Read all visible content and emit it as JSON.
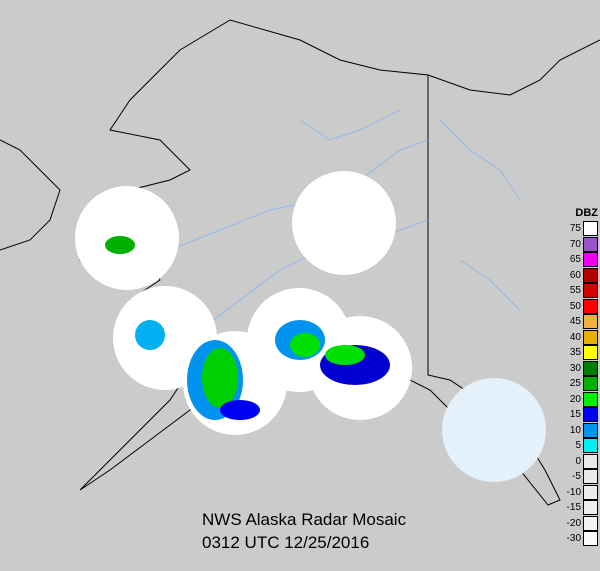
{
  "title": "NWS Alaska Radar Mosaic",
  "timestamp": "0312 UTC 12/25/2016",
  "legend": {
    "unit": "DBZ",
    "entries": [
      {
        "label": "75",
        "color": "#ffffff"
      },
      {
        "label": "70",
        "color": "#9955c9"
      },
      {
        "label": "65",
        "color": "#f000f0"
      },
      {
        "label": "60",
        "color": "#b00000"
      },
      {
        "label": "55",
        "color": "#d40000"
      },
      {
        "label": "50",
        "color": "#ff0000"
      },
      {
        "label": "45",
        "color": "#f5b040"
      },
      {
        "label": "40",
        "color": "#e6b000"
      },
      {
        "label": "35",
        "color": "#ffff00"
      },
      {
        "label": "30",
        "color": "#008000"
      },
      {
        "label": "25",
        "color": "#00b000"
      },
      {
        "label": "20",
        "color": "#00f000"
      },
      {
        "label": "15",
        "color": "#0000f0"
      },
      {
        "label": "10",
        "color": "#0094f0"
      },
      {
        "label": "5",
        "color": "#00eeee"
      },
      {
        "label": "0",
        "color": "#e8e8e8"
      },
      {
        "label": "-5",
        "color": "#eaeaea"
      },
      {
        "label": "-10",
        "color": "#ececec"
      },
      {
        "label": "-15",
        "color": "#eeeeee"
      },
      {
        "label": "-20",
        "color": "#f4f4f4"
      },
      {
        "label": "-30",
        "color": "#fafafa"
      }
    ]
  },
  "colors": {
    "background": "#cbcbcb",
    "radar_coverage": "#ffffff",
    "coastline": "#000000",
    "rivers": "#8fb8e8"
  }
}
